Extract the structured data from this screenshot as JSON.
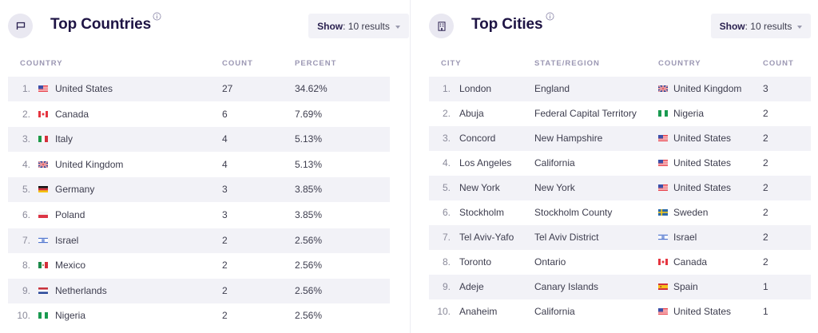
{
  "countries_panel": {
    "title": "Top Countries",
    "header_icon": "flag-icon",
    "info_icon": "info-icon",
    "show": {
      "label": "Show",
      "value": ": 10 results"
    },
    "columns": [
      "COUNTRY",
      "COUNT",
      "PERCENT"
    ],
    "rows": [
      {
        "rank": "1.",
        "flag": "us",
        "country": "United States",
        "count": "27",
        "percent": "34.62%"
      },
      {
        "rank": "2.",
        "flag": "ca",
        "country": "Canada",
        "count": "6",
        "percent": "7.69%"
      },
      {
        "rank": "3.",
        "flag": "it",
        "country": "Italy",
        "count": "4",
        "percent": "5.13%"
      },
      {
        "rank": "4.",
        "flag": "gb",
        "country": "United Kingdom",
        "count": "4",
        "percent": "5.13%"
      },
      {
        "rank": "5.",
        "flag": "de",
        "country": "Germany",
        "count": "3",
        "percent": "3.85%"
      },
      {
        "rank": "6.",
        "flag": "pl",
        "country": "Poland",
        "count": "3",
        "percent": "3.85%"
      },
      {
        "rank": "7.",
        "flag": "il",
        "country": "Israel",
        "count": "2",
        "percent": "2.56%"
      },
      {
        "rank": "8.",
        "flag": "mx",
        "country": "Mexico",
        "count": "2",
        "percent": "2.56%"
      },
      {
        "rank": "9.",
        "flag": "nl",
        "country": "Netherlands",
        "count": "2",
        "percent": "2.56%"
      },
      {
        "rank": "10.",
        "flag": "ng",
        "country": "Nigeria",
        "count": "2",
        "percent": "2.56%"
      }
    ]
  },
  "cities_panel": {
    "title": "Top Cities",
    "header_icon": "building-icon",
    "info_icon": "info-icon",
    "show": {
      "label": "Show",
      "value": ": 10 results"
    },
    "columns": [
      "CITY",
      "STATE/REGION",
      "COUNTRY",
      "COUNT"
    ],
    "rows": [
      {
        "rank": "1.",
        "city": "London",
        "region": "England",
        "flag": "gb",
        "country": "United Kingdom",
        "count": "3"
      },
      {
        "rank": "2.",
        "city": "Abuja",
        "region": "Federal Capital Territory",
        "flag": "ng",
        "country": "Nigeria",
        "count": "2"
      },
      {
        "rank": "3.",
        "city": "Concord",
        "region": "New Hampshire",
        "flag": "us",
        "country": "United States",
        "count": "2"
      },
      {
        "rank": "4.",
        "city": "Los Angeles",
        "region": "California",
        "flag": "us",
        "country": "United States",
        "count": "2"
      },
      {
        "rank": "5.",
        "city": "New York",
        "region": "New York",
        "flag": "us",
        "country": "United States",
        "count": "2"
      },
      {
        "rank": "6.",
        "city": "Stockholm",
        "region": "Stockholm County",
        "flag": "se",
        "country": "Sweden",
        "count": "2"
      },
      {
        "rank": "7.",
        "city": "Tel Aviv-Yafo",
        "region": "Tel Aviv District",
        "flag": "il",
        "country": "Israel",
        "count": "2"
      },
      {
        "rank": "8.",
        "city": "Toronto",
        "region": "Ontario",
        "flag": "ca",
        "country": "Canada",
        "count": "2"
      },
      {
        "rank": "9.",
        "city": "Adeje",
        "region": "Canary Islands",
        "flag": "es",
        "country": "Spain",
        "count": "1"
      },
      {
        "rank": "10.",
        "city": "Anaheim",
        "region": "California",
        "flag": "us",
        "country": "United States",
        "count": "1"
      }
    ]
  },
  "colors": {
    "title": "#1e1444",
    "header_text": "#9b97b3",
    "row_shade": "#f2f2f7",
    "icon_circle": "#e9e8f1"
  }
}
